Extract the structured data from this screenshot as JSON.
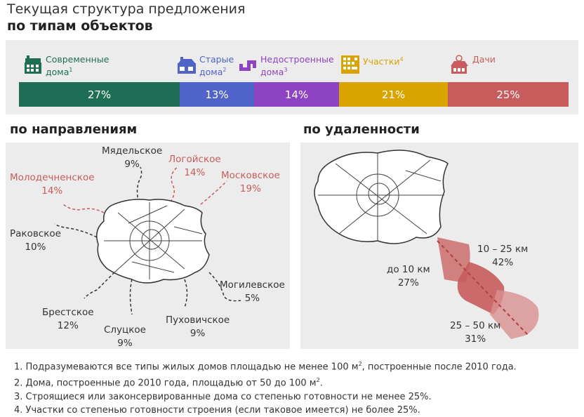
{
  "title": {
    "line1": "Текущая структура предложения",
    "line2": "по типам объектов"
  },
  "chart_data": [
    {
      "type": "bar",
      "title": "по типам объектов",
      "categories": [
        "Современные дома",
        "Старые дома",
        "Недостроенные дома",
        "Участки",
        "Дачи"
      ],
      "footnote_marks": [
        "1",
        "2",
        "3",
        "4",
        ""
      ],
      "values": [
        27,
        13,
        14,
        21,
        25
      ],
      "labels": [
        "27%",
        "13%",
        "14%",
        "21%",
        "25%"
      ],
      "colors": [
        "#1e6e55",
        "#4f63c8",
        "#8e44c2",
        "#d9a400",
        "#c85c5c"
      ],
      "icons": [
        "modern-house-icon",
        "old-house-icon",
        "unfinished-house-icon",
        "land-plot-icon",
        "dacha-icon"
      ]
    },
    {
      "type": "table",
      "title": "по направлениям",
      "categories": [
        "Мядельское",
        "Логойское",
        "Московское",
        "Молодечненское",
        "Раковское",
        "Могилевское",
        "Брестское",
        "Слуцкое",
        "Пуховичское"
      ],
      "values": [
        9,
        14,
        19,
        14,
        10,
        5,
        12,
        9,
        9
      ],
      "labels": [
        "9%",
        "14%",
        "19%",
        "14%",
        "10%",
        "5%",
        "12%",
        "9%",
        "9%"
      ],
      "highlighted": [
        false,
        true,
        true,
        true,
        false,
        false,
        false,
        false,
        false
      ]
    },
    {
      "type": "table",
      "title": "по удаленности",
      "categories": [
        "до 10 км",
        "10 – 25 км",
        "25 – 50 км"
      ],
      "values": [
        27,
        42,
        31
      ],
      "labels": [
        "27%",
        "42%",
        "31%"
      ]
    }
  ],
  "legend": [
    {
      "l1": "Современные",
      "l2": "дома",
      "sup": "1"
    },
    {
      "l1": "Старые",
      "l2": "дома",
      "sup": "2"
    },
    {
      "l1": "Недостроенные",
      "l2": "дома",
      "sup": "3"
    },
    {
      "l1": "Участки",
      "l2": "",
      "sup": "4"
    },
    {
      "l1": "Дачи",
      "l2": "",
      "sup": ""
    }
  ],
  "notes": [
    {
      "text": "1. Подразумеваются все типы жилых домов площадью не менее 100 м",
      "sup": "2",
      "tail": ", построенные после 2010 года."
    },
    {
      "text": "2. Дома, построенные до 2010 года, площадью от 50 до 100 м",
      "sup": "2",
      "tail": "."
    },
    {
      "text": "3. Строящиеся или законсервированные дома со степенью готовности не менее 25%.",
      "sup": "",
      "tail": ""
    },
    {
      "text": "4. Участки со степенью готовности строения (если таковое имеется) не более 25%.",
      "sup": "",
      "tail": ""
    }
  ]
}
